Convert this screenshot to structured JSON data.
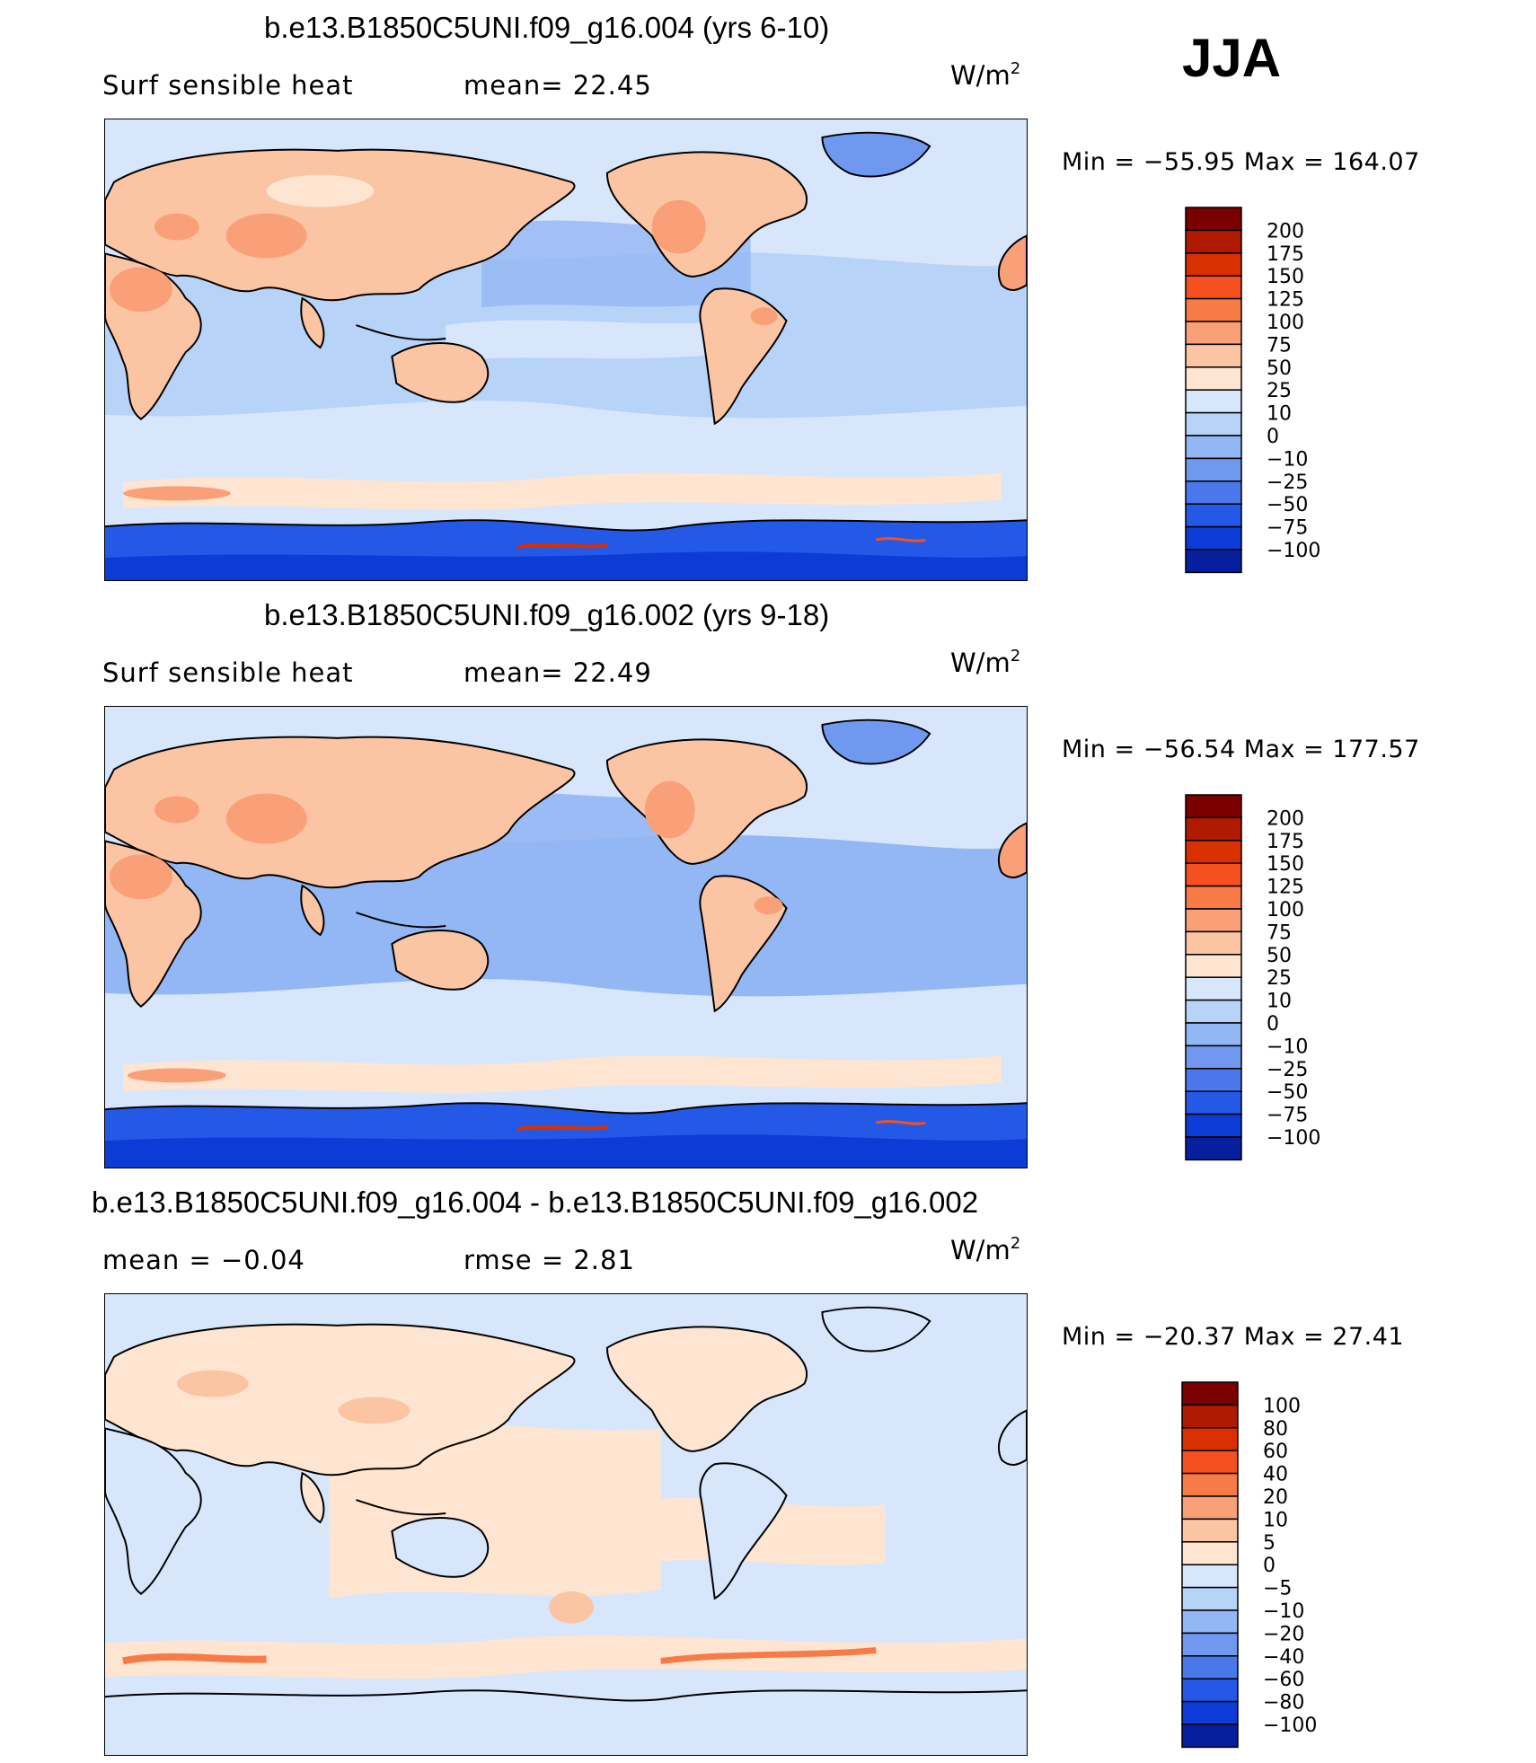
{
  "season": "JJA",
  "panels": [
    {
      "title": "b.e13.B1850C5UNI.f09_g16.004 (yrs 6-10)",
      "left_label": "Surf  sensible  heat",
      "stat_label": "mean=   22.45",
      "units_base": "W/m",
      "units_exp": "2",
      "minmax": "Min  =  −55.95  Max  =  164.07",
      "colorbar": {
        "labels": [
          "200",
          "175",
          "150",
          "125",
          "100",
          "75",
          "50",
          "25",
          "10",
          "0",
          "−10",
          "−25",
          "−50",
          "−75",
          "−100"
        ],
        "colors": [
          "#7a0000",
          "#b01a00",
          "#d93000",
          "#f5501f",
          "#f77b46",
          "#f9a078",
          "#fbc5a4",
          "#fde5d2",
          "#d7e6fb",
          "#b8d3f8",
          "#93b6f4",
          "#6f98ee",
          "#4a78ea",
          "#2459e8",
          "#0c3bd6",
          "#061f9e"
        ]
      },
      "variant": "abs1"
    },
    {
      "title": "b.e13.B1850C5UNI.f09_g16.002 (yrs 9-18)",
      "left_label": "Surf  sensible  heat",
      "stat_label": "mean=   22.49",
      "units_base": "W/m",
      "units_exp": "2",
      "minmax": "Min  =  −56.54  Max  =  177.57",
      "colorbar": {
        "labels": [
          "200",
          "175",
          "150",
          "125",
          "100",
          "75",
          "50",
          "25",
          "10",
          "0",
          "−10",
          "−25",
          "−50",
          "−75",
          "−100"
        ],
        "colors": [
          "#7a0000",
          "#b01a00",
          "#d93000",
          "#f5501f",
          "#f77b46",
          "#f9a078",
          "#fbc5a4",
          "#fde5d2",
          "#d7e6fb",
          "#b8d3f8",
          "#93b6f4",
          "#6f98ee",
          "#4a78ea",
          "#2459e8",
          "#0c3bd6",
          "#061f9e"
        ]
      },
      "variant": "abs2"
    },
    {
      "title": "b.e13.B1850C5UNI.f09_g16.004 - b.e13.B1850C5UNI.f09_g16.002",
      "left_label": "mean  =   −0.04",
      "stat_label": "rmse  =     2.81",
      "units_base": "W/m",
      "units_exp": "2",
      "minmax": "Min  =  −20.37  Max  =    27.41",
      "colorbar": {
        "labels": [
          "100",
          "80",
          "60",
          "40",
          "20",
          "10",
          "5",
          "0",
          "−5",
          "−10",
          "−20",
          "−40",
          "−60",
          "−80",
          "−100"
        ],
        "colors": [
          "#7a0000",
          "#b01a00",
          "#d93000",
          "#f5501f",
          "#f77b46",
          "#f9a078",
          "#fbc5a4",
          "#fde5d2",
          "#d7e6fb",
          "#b8d3f8",
          "#93b6f4",
          "#6f98ee",
          "#4a78ea",
          "#2459e8",
          "#0c3bd6",
          "#061f9e"
        ]
      },
      "variant": "diff"
    }
  ]
}
